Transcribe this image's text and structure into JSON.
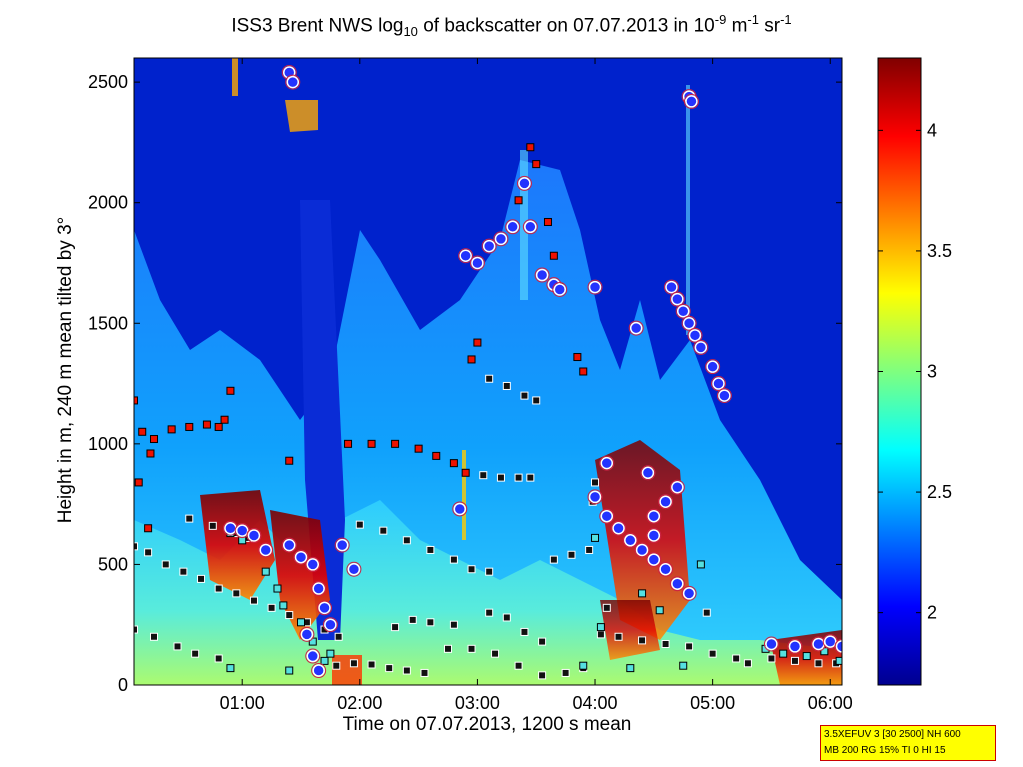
{
  "title": {
    "prefix": "ISS3 Brent NWS log",
    "sub": "10",
    "middle": " of backscatter on 07.07.2013 in 10",
    "sup1": "-9",
    "unit1": " m",
    "sup2": "-1",
    "unit2": " sr",
    "sup3": "-1"
  },
  "info_box": {
    "line1": "3.5XEFUV 3 [30 2500] NH 600",
    "line2": "MB 200 RG 15% TI 0 HI 15"
  },
  "chart_data": {
    "type": "heatmap",
    "xlabel": "Time on 07.07.2013, 1200 s mean",
    "ylabel": "Height in m, 240 m mean tilted by 3°",
    "x_range_hours": [
      0.08,
      6.1
    ],
    "ylim": [
      0,
      2600
    ],
    "x_ticks": [
      "01:00",
      "02:00",
      "03:00",
      "04:00",
      "05:00",
      "06:00"
    ],
    "x_tick_values_hours": [
      1,
      2,
      3,
      4,
      5,
      6
    ],
    "y_ticks": [
      0,
      500,
      1000,
      1500,
      2000,
      2500
    ],
    "colorbar": {
      "range": [
        1.7,
        4.3
      ],
      "ticks": [
        2,
        2.5,
        3,
        3.5,
        4
      ],
      "colormap": "jet"
    },
    "grid": false,
    "series": [
      {
        "marker": "black-square-white-edge",
        "points": [
          [
            0.08,
            575
          ],
          [
            0.2,
            550
          ],
          [
            0.35,
            500
          ],
          [
            0.5,
            470
          ],
          [
            0.65,
            440
          ],
          [
            0.8,
            400
          ],
          [
            0.95,
            380
          ],
          [
            1.1,
            350
          ],
          [
            1.25,
            320
          ],
          [
            1.4,
            290
          ],
          [
            1.55,
            260
          ],
          [
            1.7,
            230
          ],
          [
            1.82,
            200
          ],
          [
            0.08,
            230
          ],
          [
            0.25,
            200
          ],
          [
            0.45,
            160
          ],
          [
            0.6,
            130
          ],
          [
            0.8,
            110
          ],
          [
            0.55,
            690
          ],
          [
            0.75,
            660
          ],
          [
            0.95,
            630
          ],
          [
            1.05,
            610
          ],
          [
            2.0,
            665
          ],
          [
            2.2,
            640
          ],
          [
            2.4,
            600
          ],
          [
            2.6,
            560
          ],
          [
            2.8,
            520
          ],
          [
            2.95,
            480
          ],
          [
            3.1,
            470
          ],
          [
            2.3,
            240
          ],
          [
            2.45,
            270
          ],
          [
            2.6,
            260
          ],
          [
            2.8,
            250
          ],
          [
            2.75,
            150
          ],
          [
            2.95,
            150
          ],
          [
            3.15,
            130
          ],
          [
            3.35,
            80
          ],
          [
            3.55,
            40
          ],
          [
            3.75,
            50
          ],
          [
            3.9,
            70
          ],
          [
            3.1,
            300
          ],
          [
            3.25,
            280
          ],
          [
            3.4,
            220
          ],
          [
            3.55,
            180
          ],
          [
            3.1,
            1270
          ],
          [
            3.25,
            1240
          ],
          [
            3.4,
            1200
          ],
          [
            3.5,
            1180
          ],
          [
            3.05,
            870
          ],
          [
            3.2,
            860
          ],
          [
            3.35,
            860
          ],
          [
            3.45,
            860
          ],
          [
            3.65,
            520
          ],
          [
            3.8,
            540
          ],
          [
            3.95,
            560
          ],
          [
            4.2,
            200
          ],
          [
            4.4,
            185
          ],
          [
            4.6,
            170
          ],
          [
            4.8,
            160
          ],
          [
            5.0,
            130
          ],
          [
            5.2,
            110
          ],
          [
            5.5,
            110
          ],
          [
            5.7,
            100
          ],
          [
            5.9,
            90
          ],
          [
            6.05,
            90
          ],
          [
            1.8,
            80
          ],
          [
            1.95,
            90
          ],
          [
            2.1,
            85
          ],
          [
            2.25,
            70
          ],
          [
            2.4,
            60
          ],
          [
            2.55,
            50
          ],
          [
            4.05,
            210
          ],
          [
            4.1,
            320
          ],
          [
            4.0,
            840
          ],
          [
            3.98,
            760
          ],
          [
            4.95,
            300
          ],
          [
            5.3,
            90
          ]
        ]
      },
      {
        "marker": "red-square",
        "points": [
          [
            0.08,
            1180
          ],
          [
            0.15,
            1050
          ],
          [
            0.25,
            1020
          ],
          [
            0.4,
            1060
          ],
          [
            0.55,
            1070
          ],
          [
            0.7,
            1080
          ],
          [
            0.8,
            1070
          ],
          [
            0.85,
            1100
          ],
          [
            0.9,
            1220
          ],
          [
            0.12,
            840
          ],
          [
            0.22,
            960
          ],
          [
            0.2,
            650
          ],
          [
            1.4,
            930
          ],
          [
            1.9,
            1000
          ],
          [
            2.1,
            1000
          ],
          [
            2.3,
            1000
          ],
          [
            2.5,
            980
          ],
          [
            2.65,
            950
          ],
          [
            2.8,
            920
          ],
          [
            2.9,
            880
          ],
          [
            2.95,
            1350
          ],
          [
            3.0,
            1420
          ],
          [
            3.45,
            2230
          ],
          [
            3.5,
            2160
          ],
          [
            3.6,
            1920
          ],
          [
            3.65,
            1780
          ],
          [
            3.35,
            2010
          ],
          [
            3.85,
            1360
          ],
          [
            3.9,
            1300
          ],
          [
            3.55,
            1700
          ],
          [
            3.7,
            1650
          ]
        ]
      },
      {
        "marker": "cyan-square",
        "points": [
          [
            0.9,
            630
          ],
          [
            1.0,
            600
          ],
          [
            1.2,
            470
          ],
          [
            1.3,
            400
          ],
          [
            1.35,
            330
          ],
          [
            1.5,
            260
          ],
          [
            1.6,
            180
          ],
          [
            1.7,
            100
          ],
          [
            0.9,
            70
          ],
          [
            1.4,
            60
          ],
          [
            1.75,
            130
          ],
          [
            4.0,
            610
          ],
          [
            4.4,
            380
          ],
          [
            4.55,
            310
          ],
          [
            4.9,
            500
          ],
          [
            5.45,
            150
          ],
          [
            5.6,
            130
          ],
          [
            5.8,
            120
          ],
          [
            5.95,
            140
          ],
          [
            6.08,
            100
          ],
          [
            4.3,
            70
          ],
          [
            4.75,
            80
          ],
          [
            4.05,
            240
          ],
          [
            3.9,
            80
          ]
        ]
      },
      {
        "marker": "blue-dot-white-edge",
        "points": [
          [
            1.4,
            2540
          ],
          [
            1.43,
            2500
          ],
          [
            0.9,
            650
          ],
          [
            1.0,
            640
          ],
          [
            1.1,
            620
          ],
          [
            1.2,
            560
          ],
          [
            1.4,
            580
          ],
          [
            1.5,
            530
          ],
          [
            1.6,
            500
          ],
          [
            1.65,
            400
          ],
          [
            1.7,
            320
          ],
          [
            1.75,
            250
          ],
          [
            1.6,
            120
          ],
          [
            1.65,
            60
          ],
          [
            1.85,
            580
          ],
          [
            1.95,
            480
          ],
          [
            2.9,
            1780
          ],
          [
            3.0,
            1750
          ],
          [
            3.1,
            1820
          ],
          [
            3.2,
            1850
          ],
          [
            3.3,
            1900
          ],
          [
            3.4,
            2080
          ],
          [
            3.45,
            1900
          ],
          [
            3.55,
            1700
          ],
          [
            3.65,
            1660
          ],
          [
            3.7,
            1640
          ],
          [
            2.85,
            730
          ],
          [
            4.0,
            1650
          ],
          [
            4.35,
            1480
          ],
          [
            4.1,
            920
          ],
          [
            4.0,
            780
          ],
          [
            4.1,
            700
          ],
          [
            4.2,
            650
          ],
          [
            4.3,
            600
          ],
          [
            4.4,
            560
          ],
          [
            4.5,
            520
          ],
          [
            4.6,
            480
          ],
          [
            4.7,
            420
          ],
          [
            4.8,
            380
          ],
          [
            4.5,
            700
          ],
          [
            4.6,
            760
          ],
          [
            4.7,
            820
          ],
          [
            4.45,
            880
          ],
          [
            4.5,
            620
          ],
          [
            4.65,
            1650
          ],
          [
            4.7,
            1600
          ],
          [
            4.75,
            1550
          ],
          [
            4.8,
            1500
          ],
          [
            4.85,
            1450
          ],
          [
            4.9,
            1400
          ],
          [
            5.0,
            1320
          ],
          [
            5.05,
            1250
          ],
          [
            5.1,
            1200
          ],
          [
            4.8,
            2440
          ],
          [
            4.82,
            2420
          ],
          [
            5.5,
            170
          ],
          [
            5.7,
            160
          ],
          [
            5.9,
            170
          ],
          [
            6.0,
            180
          ],
          [
            6.1,
            160
          ],
          [
            1.55,
            210
          ]
        ]
      }
    ]
  }
}
